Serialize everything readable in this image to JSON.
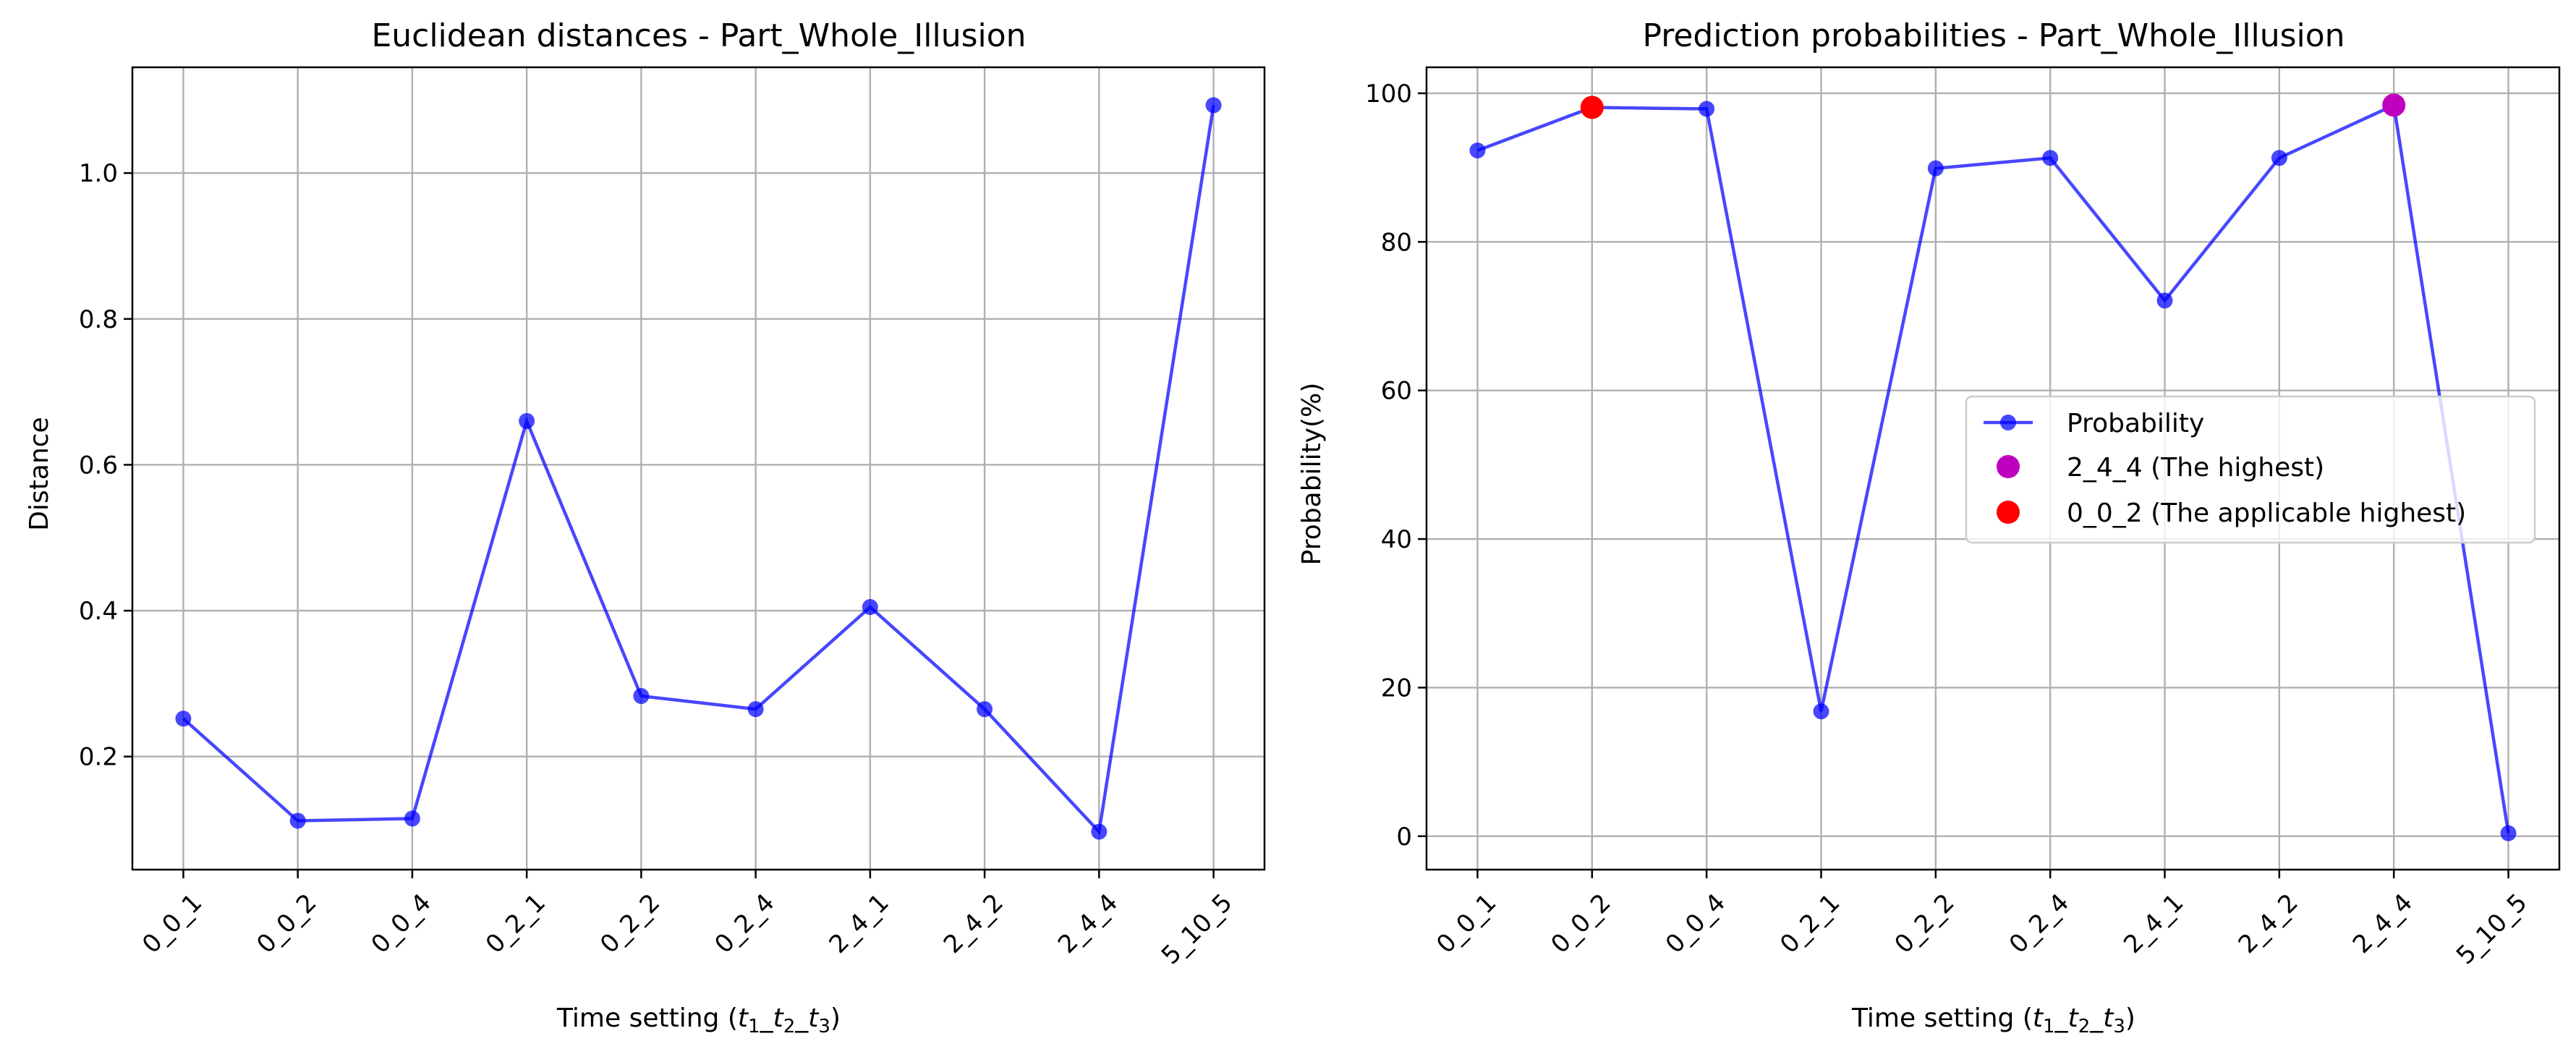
{
  "chart_data": [
    {
      "type": "line",
      "title": "Euclidean distances - Part_Whole_Illusion",
      "xlabel_prefix": "Time setting (",
      "xlabel_t1": "t",
      "xlabel_t1_sub": "1",
      "xlabel_sep1": "_",
      "xlabel_t2": "t",
      "xlabel_t2_sub": "2",
      "xlabel_sep2": "_",
      "xlabel_t3": "t",
      "xlabel_t3_sub": "3",
      "xlabel_suffix": ")",
      "ylabel": "Distance",
      "categories": [
        "0_0_1",
        "0_0_2",
        "0_0_4",
        "0_2_1",
        "0_2_2",
        "0_2_4",
        "2_4_1",
        "2_4_2",
        "2_4_4",
        "5_10_5"
      ],
      "series": [
        {
          "values": [
            0.252,
            0.112,
            0.115,
            0.66,
            0.283,
            0.265,
            0.405,
            0.265,
            0.097,
            1.093
          ],
          "color": "#0000ff"
        }
      ],
      "ylim": [
        0.045,
        1.145
      ],
      "yticks": [
        0.2,
        0.4,
        0.6,
        0.8,
        1.0
      ],
      "ytick_labels": [
        "0.2",
        "0.4",
        "0.6",
        "0.8",
        "1.0"
      ],
      "grid": true,
      "legend": null
    },
    {
      "type": "line",
      "title": "Prediction probabilities - Part_Whole_Illusion",
      "xlabel_prefix": "Time setting (",
      "xlabel_t1": "t",
      "xlabel_t1_sub": "1",
      "xlabel_sep1": "_",
      "xlabel_t2": "t",
      "xlabel_t2_sub": "2",
      "xlabel_sep2": "_",
      "xlabel_t3": "t",
      "xlabel_t3_sub": "3",
      "xlabel_suffix": ")",
      "ylabel": "Probability(%)",
      "categories": [
        "0_0_1",
        "0_0_2",
        "0_0_4",
        "0_2_1",
        "0_2_2",
        "0_2_4",
        "2_4_1",
        "2_4_2",
        "2_4_4",
        "5_10_5"
      ],
      "series": [
        {
          "name": "Probability",
          "values": [
            92.3,
            98.1,
            97.9,
            16.8,
            89.9,
            91.3,
            72.1,
            91.3,
            98.4,
            0.4
          ],
          "color": "#0000ff"
        }
      ],
      "highlights": [
        {
          "name": "2_4_4 (The highest)",
          "category": "2_4_4",
          "value": 98.4,
          "color": "#bf00bf"
        },
        {
          "name": "0_0_2 (The applicable highest)",
          "category": "0_0_2",
          "value": 98.1,
          "color": "#ff0000"
        }
      ],
      "ylim": [
        -4.5,
        103.5
      ],
      "yticks": [
        0,
        20,
        40,
        60,
        80,
        100
      ],
      "ytick_labels": [
        "0",
        "20",
        "40",
        "60",
        "80",
        "100"
      ],
      "grid": true,
      "legend": "center-right"
    }
  ]
}
